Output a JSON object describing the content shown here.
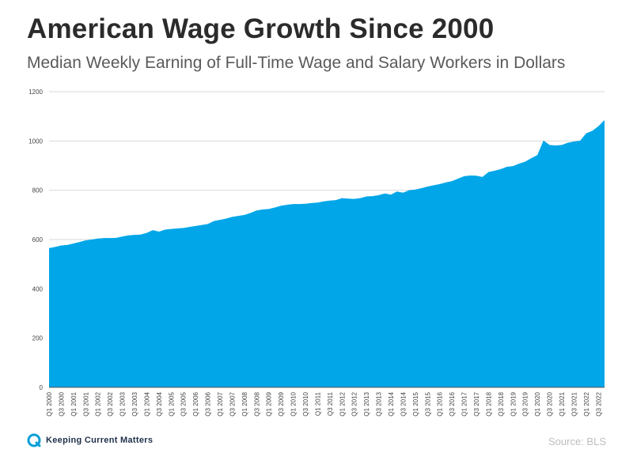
{
  "header": {
    "title": "American Wage Growth Since 2000",
    "subtitle": "Median Weekly Earning of Full-Time Wage and Salary Workers in Dollars"
  },
  "footer": {
    "brand": "Keeping Current Matters",
    "source": "Source: BLS"
  },
  "colors": {
    "area": "#00a6e8",
    "grid": "#d9d9d9",
    "axis": "#555555",
    "brand": "#0a9fd8"
  },
  "chart_data": {
    "type": "area",
    "title": "American Wage Growth Since 2000",
    "subtitle": "Median Weekly Earning of Full-Time Wage and Salary Workers in Dollars",
    "xlabel": "",
    "ylabel": "",
    "ylim": [
      0,
      1200
    ],
    "yticks": [
      0,
      200,
      400,
      600,
      800,
      1000,
      1200
    ],
    "grid": true,
    "legend": "none",
    "x": [
      "Q1 2000",
      "Q2 2000",
      "Q3 2000",
      "Q4 2000",
      "Q1 2001",
      "Q2 2001",
      "Q3 2001",
      "Q4 2001",
      "Q1 2002",
      "Q2 2002",
      "Q3 2002",
      "Q4 2002",
      "Q1 2003",
      "Q2 2003",
      "Q3 2003",
      "Q4 2003",
      "Q1 2004",
      "Q2 2004",
      "Q3 2004",
      "Q4 2004",
      "Q1 2005",
      "Q2 2005",
      "Q3 2005",
      "Q4 2005",
      "Q1 2006",
      "Q2 2006",
      "Q3 2006",
      "Q4 2006",
      "Q1 2007",
      "Q2 2007",
      "Q3 2007",
      "Q4 2007",
      "Q1 2008",
      "Q2 2008",
      "Q3 2008",
      "Q4 2008",
      "Q1 2009",
      "Q2 2009",
      "Q3 2009",
      "Q4 2009",
      "Q1 2010",
      "Q2 2010",
      "Q3 2010",
      "Q4 2010",
      "Q1 2011",
      "Q2 2011",
      "Q3 2011",
      "Q4 2011",
      "Q1 2012",
      "Q2 2012",
      "Q3 2012",
      "Q4 2012",
      "Q1 2013",
      "Q2 2013",
      "Q3 2013",
      "Q4 2013",
      "Q1 2014",
      "Q2 2014",
      "Q3 2014",
      "Q4 2014",
      "Q1 2015",
      "Q2 2015",
      "Q3 2015",
      "Q4 2015",
      "Q1 2016",
      "Q2 2016",
      "Q3 2016",
      "Q4 2016",
      "Q1 2017",
      "Q2 2017",
      "Q3 2017",
      "Q4 2017",
      "Q1 2018",
      "Q2 2018",
      "Q3 2018",
      "Q4 2018",
      "Q1 2019",
      "Q2 2019",
      "Q3 2019",
      "Q4 2019",
      "Q1 2020",
      "Q2 2020",
      "Q3 2020",
      "Q4 2020",
      "Q1 2021",
      "Q2 2021",
      "Q3 2021",
      "Q4 2021",
      "Q1 2022",
      "Q2 2022",
      "Q3 2022",
      "Q4 2022"
    ],
    "tick_labels": [
      "Q1 2000",
      "Q3 2000",
      "Q1 2001",
      "Q3 2001",
      "Q1 2002",
      "Q3 2002",
      "Q1 2003",
      "Q3 2003",
      "Q1 2004",
      "Q3 2004",
      "Q1 2005",
      "Q3 2005",
      "Q1 2006",
      "Q3 2006",
      "Q1 2007",
      "Q3 2007",
      "Q1 2008",
      "Q3 2008",
      "Q1 2009",
      "Q3 2009",
      "Q1 2010",
      "Q3 2010",
      "Q1 2011",
      "Q3 2011",
      "Q1 2012",
      "Q3 2012",
      "Q1 2013",
      "Q3 2013",
      "Q1 2014",
      "Q3 2014",
      "Q1 2015",
      "Q3 2015",
      "Q1 2016",
      "Q3 2016",
      "Q1 2017",
      "Q3 2017",
      "Q1 2018",
      "Q3 2018",
      "Q1 2019",
      "Q3 2019",
      "Q1 2020",
      "Q3 2020",
      "Q1 2021",
      "Q3 2021",
      "Q1 2022",
      "Q3 2022"
    ],
    "series": [
      {
        "values": [
          565,
          570,
          576,
          578,
          584,
          590,
          597,
          600,
          604,
          606,
          606,
          607,
          612,
          617,
          619,
          620,
          627,
          638,
          632,
          640,
          643,
          645,
          647,
          651,
          655,
          659,
          663,
          675,
          680,
          685,
          692,
          696,
          700,
          708,
          718,
          722,
          724,
          730,
          737,
          741,
          744,
          744,
          745,
          748,
          750,
          755,
          758,
          760,
          768,
          766,
          765,
          768,
          775,
          776,
          780,
          787,
          782,
          795,
          790,
          800,
          803,
          808,
          815,
          820,
          825,
          832,
          837,
          847,
          857,
          860,
          859,
          854,
          874,
          879,
          886,
          895,
          898,
          908,
          916,
          930,
          943,
          1002,
          984,
          982,
          984,
          993,
          998,
          1001,
          1031,
          1041,
          1060,
          1085
        ]
      }
    ]
  }
}
